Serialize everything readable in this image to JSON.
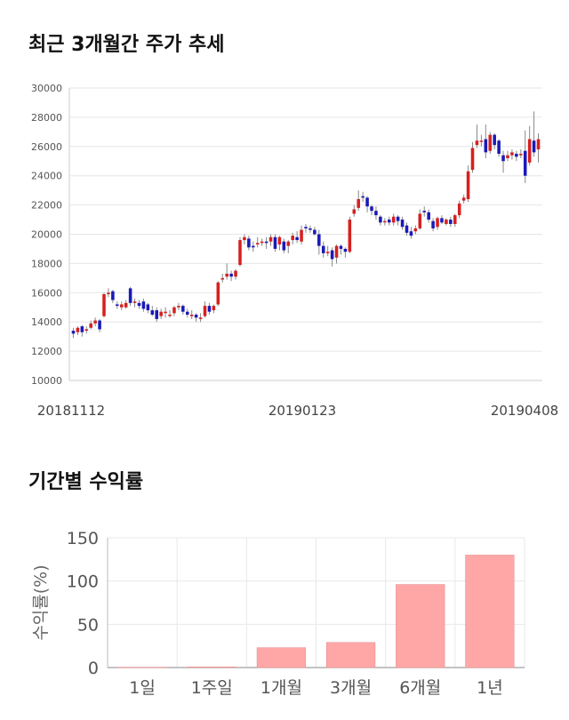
{
  "sections": {
    "price_title": "최근 3개월간 주가 추세",
    "returns_title": "기간별 수익률"
  },
  "chart_data": [
    {
      "type": "candlestick",
      "title": "최근 3개월간 주가 추세",
      "ylim": [
        10000,
        30000
      ],
      "y_ticks": [
        "10000",
        "12000",
        "14000",
        "16000",
        "18000",
        "20000",
        "22000",
        "24000",
        "26000",
        "28000",
        "30000"
      ],
      "x_tick_labels": [
        "20181112",
        "20190123",
        "20190408"
      ],
      "grid": true,
      "colors": {
        "up": "#d62020",
        "down": "#1a1ab8",
        "wick": "#888888"
      },
      "candles": [
        [
          13400,
          13200,
          13600,
          12900
        ],
        [
          13300,
          13600,
          13700,
          13100
        ],
        [
          13700,
          13300,
          13800,
          13000
        ],
        [
          13400,
          13500,
          13700,
          13200
        ],
        [
          13600,
          13900,
          14100,
          13500
        ],
        [
          13900,
          14100,
          14300,
          13700
        ],
        [
          14100,
          13500,
          14200,
          13300
        ],
        [
          14400,
          15900,
          16000,
          14300
        ],
        [
          15900,
          16000,
          16300,
          15700
        ],
        [
          16100,
          15500,
          16200,
          15300
        ],
        [
          15200,
          15100,
          15400,
          14900
        ],
        [
          15000,
          15200,
          15400,
          14800
        ],
        [
          15000,
          15300,
          15500,
          14900
        ],
        [
          16300,
          15300,
          16400,
          15100
        ],
        [
          15300,
          15400,
          15600,
          15000
        ],
        [
          15300,
          15100,
          15500,
          14900
        ],
        [
          15400,
          14900,
          15600,
          14700
        ],
        [
          15200,
          14800,
          15300,
          14600
        ],
        [
          14800,
          14500,
          15100,
          14400
        ],
        [
          14800,
          14200,
          15000,
          14000
        ],
        [
          14400,
          14700,
          14900,
          14200
        ],
        [
          14700,
          14700,
          15000,
          14300
        ],
        [
          14500,
          14500,
          14800,
          14300
        ],
        [
          14600,
          15000,
          15100,
          14400
        ],
        [
          15000,
          15100,
          15300,
          14800
        ],
        [
          15100,
          14700,
          15200,
          14500
        ],
        [
          14700,
          14500,
          14900,
          14300
        ],
        [
          14400,
          14500,
          14800,
          14200
        ],
        [
          14500,
          14300,
          14600,
          14000
        ],
        [
          14200,
          14300,
          14600,
          14000
        ],
        [
          14400,
          15100,
          15400,
          14300
        ],
        [
          15100,
          14700,
          15300,
          14500
        ],
        [
          14800,
          15100,
          15200,
          14600
        ],
        [
          15200,
          16700,
          16800,
          15100
        ],
        [
          16900,
          17000,
          17300,
          16700
        ],
        [
          17100,
          17300,
          18000,
          16900
        ],
        [
          17300,
          17100,
          17500,
          16800
        ],
        [
          17100,
          17500,
          17600,
          16900
        ],
        [
          17900,
          19600,
          19800,
          17800
        ],
        [
          19600,
          19800,
          20000,
          19300
        ],
        [
          19700,
          19100,
          19900,
          18900
        ],
        [
          19200,
          19100,
          19500,
          18800
        ],
        [
          19300,
          19400,
          19800,
          19100
        ],
        [
          19400,
          19500,
          19700,
          19200
        ],
        [
          19500,
          19400,
          19800,
          19000
        ],
        [
          19500,
          19800,
          20000,
          19200
        ],
        [
          19800,
          19000,
          20000,
          18800
        ],
        [
          19300,
          19800,
          19900,
          18900
        ],
        [
          19500,
          18900,
          19700,
          18700
        ],
        [
          19200,
          19500,
          19600,
          18700
        ],
        [
          19600,
          19900,
          20100,
          19300
        ],
        [
          19800,
          19600,
          20200,
          19400
        ],
        [
          19500,
          20300,
          20600,
          19300
        ],
        [
          20500,
          20400,
          20700,
          20100
        ],
        [
          20400,
          20300,
          20600,
          20100
        ],
        [
          20300,
          20000,
          20500,
          19900
        ],
        [
          20000,
          19200,
          20300,
          18600
        ],
        [
          19200,
          18700,
          19500,
          18400
        ],
        [
          18700,
          18800,
          19200,
          18500
        ],
        [
          18900,
          18300,
          19100,
          17800
        ],
        [
          18400,
          19200,
          19300,
          18000
        ],
        [
          19200,
          19000,
          19300,
          18600
        ],
        [
          19000,
          18800,
          19100,
          18400
        ],
        [
          18800,
          21000,
          21200,
          18700
        ],
        [
          21400,
          21700,
          22000,
          21200
        ],
        [
          21800,
          22400,
          23000,
          21600
        ],
        [
          22600,
          22500,
          22900,
          22200
        ],
        [
          22500,
          21900,
          22600,
          21500
        ],
        [
          21900,
          21600,
          22000,
          21300
        ],
        [
          21600,
          21300,
          21900,
          21000
        ],
        [
          21200,
          20800,
          21300,
          20600
        ],
        [
          20900,
          20900,
          21100,
          20600
        ],
        [
          21000,
          20800,
          21200,
          20600
        ],
        [
          20800,
          21200,
          21400,
          20600
        ],
        [
          21200,
          20900,
          21300,
          20600
        ],
        [
          21000,
          20500,
          21200,
          20300
        ],
        [
          20600,
          20100,
          20800,
          19900
        ],
        [
          20200,
          19900,
          20500,
          19700
        ],
        [
          20200,
          20400,
          20600,
          20000
        ],
        [
          20400,
          21400,
          21700,
          20300
        ],
        [
          21600,
          21500,
          21900,
          21200
        ],
        [
          21500,
          21000,
          21700,
          20800
        ],
        [
          20900,
          20400,
          21100,
          20200
        ],
        [
          20500,
          21100,
          21200,
          20300
        ],
        [
          21100,
          20800,
          21300,
          20700
        ],
        [
          20700,
          21000,
          21100,
          20600
        ],
        [
          21000,
          20700,
          21200,
          20500
        ],
        [
          20700,
          21300,
          21400,
          20500
        ],
        [
          21300,
          22100,
          22300,
          21100
        ],
        [
          22300,
          22500,
          22700,
          22100
        ],
        [
          22400,
          24300,
          24700,
          22200
        ],
        [
          24400,
          25900,
          26300,
          24200
        ],
        [
          26100,
          26400,
          27500,
          25900
        ],
        [
          26400,
          26400,
          26800,
          26000
        ],
        [
          26500,
          25600,
          27500,
          25200
        ],
        [
          25700,
          26800,
          27000,
          25500
        ],
        [
          26800,
          26100,
          26900,
          25800
        ],
        [
          26400,
          25500,
          26500,
          25300
        ],
        [
          25400,
          25000,
          25700,
          24200
        ],
        [
          25200,
          25400,
          25700,
          25000
        ],
        [
          25400,
          25600,
          25800,
          25100
        ],
        [
          25500,
          25300,
          25700,
          25000
        ],
        [
          25400,
          25500,
          25800,
          25200
        ],
        [
          25700,
          24000,
          27100,
          23500
        ],
        [
          24900,
          26500,
          27400,
          24700
        ],
        [
          26400,
          25600,
          28400,
          25300
        ],
        [
          25800,
          26500,
          26900,
          24900
        ]
      ]
    },
    {
      "type": "bar",
      "title": "기간별 수익률",
      "ylabel": "수익률(%)",
      "categories": [
        "1일",
        "1주일",
        "1개월",
        "3개월",
        "6개월",
        "1년"
      ],
      "values": [
        0.4,
        0.8,
        23,
        29,
        96,
        130
      ],
      "ylim": [
        0,
        150
      ],
      "y_ticks": [
        "0",
        "50",
        "100",
        "150"
      ],
      "grid": true,
      "colors": {
        "bar": "#ffa6a6",
        "bar_edge": "#e08a8a"
      }
    }
  ]
}
